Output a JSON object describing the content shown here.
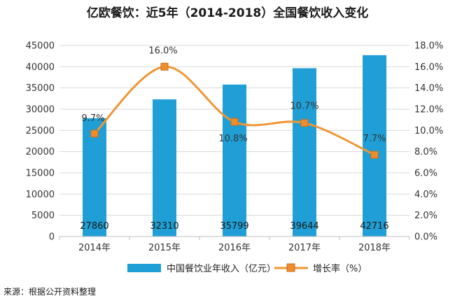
{
  "chart_data": {
    "type": "bar+line",
    "title": "亿欧餐饮：近5年（2014-2018）全国餐饮收入变化",
    "categories": [
      "2014年",
      "2015年",
      "2016年",
      "2017年",
      "2018年"
    ],
    "series": [
      {
        "name": "中国餐饮业年收入（亿元）",
        "type": "bar",
        "axis": "left",
        "values": [
          27860,
          32310,
          35799,
          39644,
          42716
        ],
        "labels": [
          "27860",
          "32310",
          "35799",
          "39644",
          "42716"
        ]
      },
      {
        "name": "增长率（%）",
        "type": "line",
        "axis": "right",
        "values": [
          9.7,
          16.0,
          10.8,
          10.7,
          7.7
        ],
        "labels": [
          "9.7%",
          "16.0%",
          "10.8%",
          "10.7%",
          "7.7%"
        ]
      }
    ],
    "y_left": {
      "min": 0,
      "max": 45000,
      "step": 5000,
      "ticks": [
        "0",
        "5000",
        "10000",
        "15000",
        "20000",
        "25000",
        "30000",
        "35000",
        "40000",
        "45000"
      ]
    },
    "y_right": {
      "min": 0,
      "max": 18,
      "step": 2,
      "ticks": [
        "0.0%",
        "2.0%",
        "4.0%",
        "6.0%",
        "8.0%",
        "10.0%",
        "12.0%",
        "14.0%",
        "16.0%",
        "18.0%"
      ]
    },
    "grid": true,
    "legend": "bottom"
  },
  "source_note": "来源：根据公开资料整理",
  "colors": {
    "bar": "#1f9fd5",
    "line": "#ef9636",
    "marker_fill": "#ef8c2b",
    "marker_stroke": "#c8701e",
    "grid": "#d9d9d9",
    "axis": "#bfbfbf"
  }
}
